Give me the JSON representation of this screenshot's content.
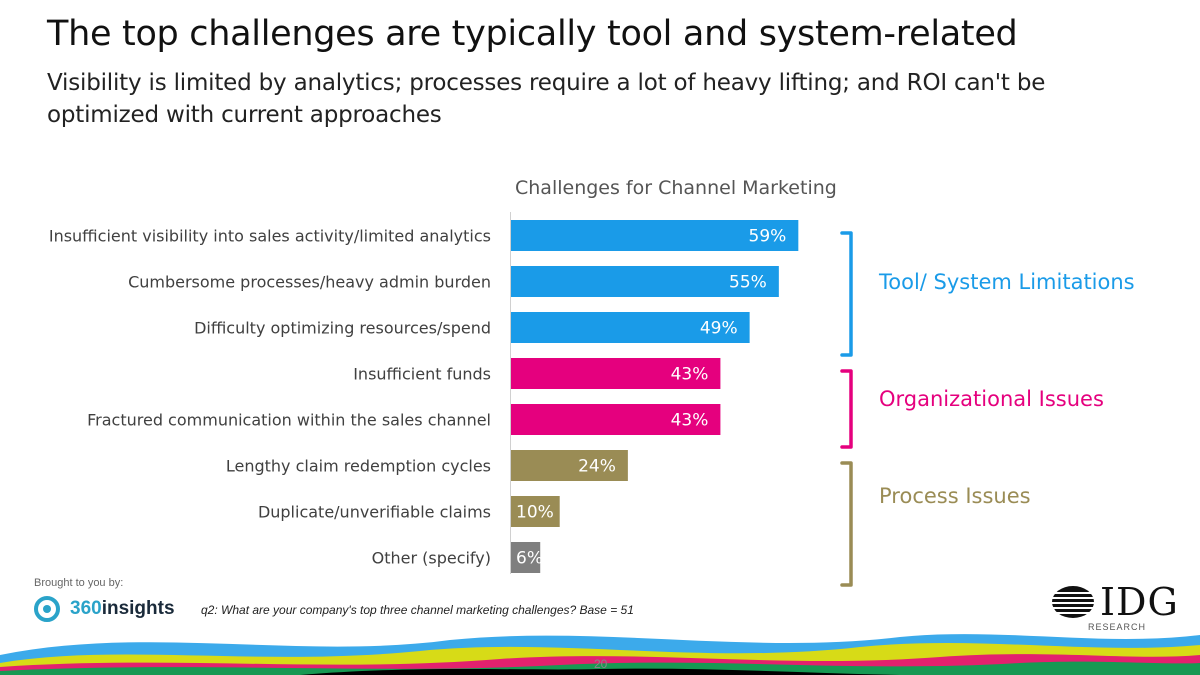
{
  "slide": {
    "title": "The top challenges are typically tool and system-related",
    "subtitle": "Visibility is limited by analytics; processes require a lot of heavy lifting; and ROI can't be optimized with current approaches",
    "page_number": "20"
  },
  "footer": {
    "brought_to_you_by": "Brought to you by:",
    "sponsor_num": "360",
    "sponsor_word": "insights",
    "question": "q2: What are your company's top three channel marketing challenges? Base = 51",
    "publisher": "IDG",
    "publisher_sub": "RESEARCH"
  },
  "colors": {
    "tool": "#1a9be8",
    "org": "#e5007e",
    "process": "#9a8c55",
    "other": "#7f7f7f"
  },
  "groups": [
    {
      "name": "Tool/ System Limitations",
      "color_key": "tool",
      "rows": [
        0,
        2
      ]
    },
    {
      "name": "Organizational Issues",
      "color_key": "org",
      "rows": [
        3,
        4
      ]
    },
    {
      "name": "Process Issues",
      "color_key": "process",
      "rows": [
        5,
        7
      ]
    }
  ],
  "chart_data": {
    "type": "bar",
    "orientation": "horizontal",
    "title": "Challenges for Channel Marketing",
    "categories": [
      "Insufficient visibility into sales activity/limited analytics",
      "Cumbersome processes/heavy admin burden",
      "Difficulty optimizing resources/spend",
      "Insufficient funds",
      "Fractured communication within the sales channel",
      "Lengthy claim redemption cycles",
      "Duplicate/unverifiable claims",
      "Other (specify)"
    ],
    "values": [
      59,
      55,
      49,
      43,
      43,
      24,
      10,
      6
    ],
    "data_labels": [
      "59%",
      "55%",
      "49%",
      "43%",
      "43%",
      "24%",
      "10%",
      "6%"
    ],
    "bar_color_keys": [
      "tool",
      "tool",
      "tool",
      "org",
      "org",
      "process",
      "process",
      "other"
    ],
    "xlim": [
      0,
      100
    ],
    "xlabel": "",
    "ylabel": "",
    "grid": false
  }
}
